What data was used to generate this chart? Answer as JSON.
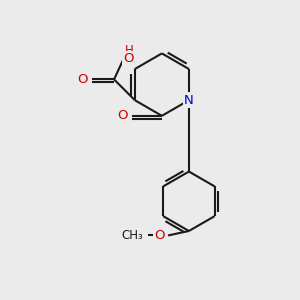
{
  "bg_color": "#ebebeb",
  "bond_color": "#1a1a1a",
  "bond_width": 1.5,
  "atom_colors": {
    "O": "#cc0000",
    "N": "#0000cc",
    "C": "#1a1a1a"
  },
  "font_size": 8.5,
  "fig_size": [
    3.0,
    3.0
  ],
  "dpi": 100
}
